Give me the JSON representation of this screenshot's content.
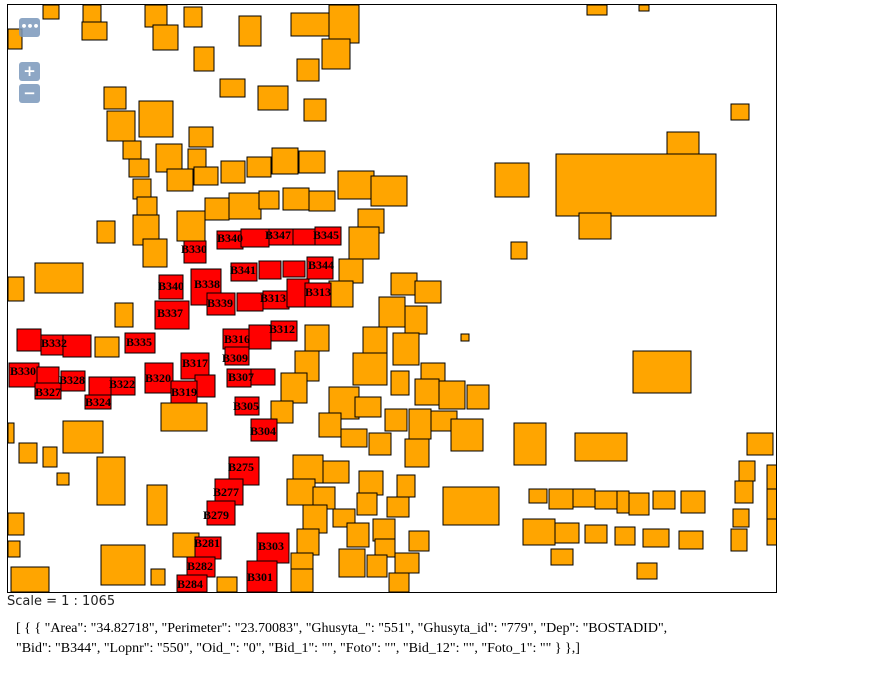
{
  "map": {
    "controls": {
      "layers_icon": "more-horizontal-icon",
      "zoom_in_label": "+",
      "zoom_out_label": "−"
    },
    "colors": {
      "building_fill": "#FFA500",
      "selected_fill": "#FF0000",
      "outline": "#000000"
    },
    "building_labels": [
      "B330",
      "B340",
      "B347",
      "B345",
      "B341",
      "B344",
      "B340",
      "B338",
      "B339",
      "B313",
      "B313",
      "B337",
      "B316",
      "B312",
      "B332",
      "B335",
      "B309",
      "B317",
      "B330",
      "B328",
      "B322",
      "B320",
      "B307",
      "B327",
      "B324",
      "B319",
      "B305",
      "B304",
      "B275",
      "B277",
      "B279",
      "B281",
      "B303",
      "B282",
      "B301",
      "B284"
    ]
  },
  "scale": {
    "text": "Scale = 1 : 1065"
  },
  "feature_info": {
    "line1": "[ { { \"Area\": \"34.82718\", \"Perimeter\": \"23.70083\", \"Ghusyta_\": \"551\", \"Ghusyta_id\": \"779\", \"Dep\": \"BOSTADID\",",
    "line2": "\"Bid\": \"B344\", \"Lopnr\": \"550\", \"Oid_\": \"0\", \"Bid_1\": \"\", \"Foto\": \"\", \"Bid_12\": \"\", \"Foto_1\": \"\" } },]"
  }
}
